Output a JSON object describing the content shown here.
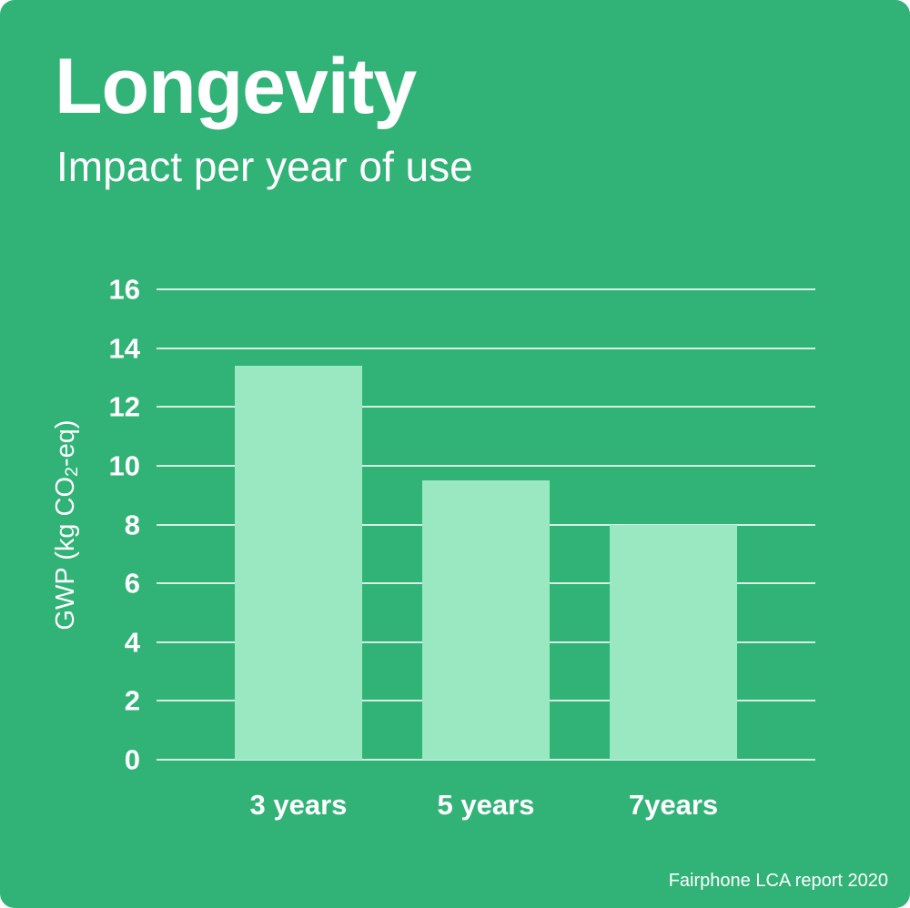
{
  "page": {
    "title": "Longevity",
    "subtitle": "Impact per year of use",
    "footer": "Fairphone LCA report 2020"
  },
  "colors": {
    "background": "#31b377",
    "bar": "#99e8c2",
    "gridline": "rgba(255,255,255,0.8)",
    "text": "#ffffff"
  },
  "chart_data": {
    "type": "bar",
    "title": "Longevity",
    "subtitle": "Impact per year of use",
    "categories": [
      "3 years",
      "5 years",
      "7years"
    ],
    "values": [
      13.4,
      9.5,
      8.0
    ],
    "xlabel": "",
    "ylabel": {
      "pre": "GWP (kg CO",
      "sub": "2",
      "post": "-eq)"
    },
    "ylim": [
      0,
      16
    ],
    "yticks": [
      0,
      2,
      4,
      6,
      8,
      10,
      12,
      14,
      16
    ],
    "grid": true,
    "legend": false,
    "bar_color": "#99e8c2",
    "background_color": "#31b377",
    "source": "Fairphone LCA report 2020"
  }
}
